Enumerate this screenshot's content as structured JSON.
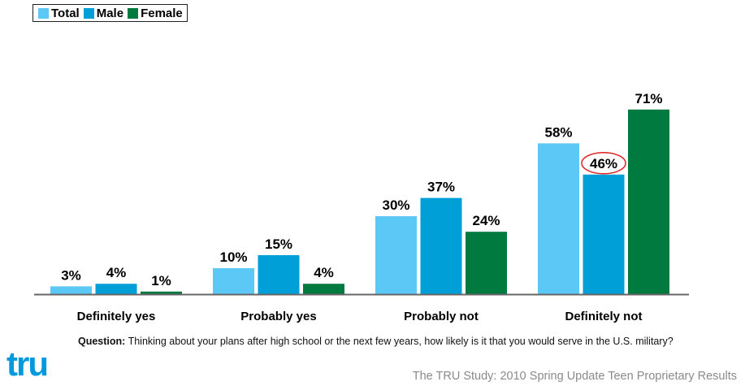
{
  "legend": {
    "items": [
      {
        "label": "Total",
        "color": "#5bc8f5"
      },
      {
        "label": "Male",
        "color": "#009fd8"
      },
      {
        "label": "Female",
        "color": "#007a3e"
      }
    ]
  },
  "chart_data": {
    "type": "bar",
    "categories": [
      "Definitely yes",
      "Probably yes",
      "Probably not",
      "Definitely not"
    ],
    "series": [
      {
        "name": "Total",
        "values": [
          3,
          10,
          30,
          58
        ],
        "color": "#5bc8f5"
      },
      {
        "name": "Male",
        "values": [
          4,
          15,
          37,
          46
        ],
        "color": "#009fd8"
      },
      {
        "name": "Female",
        "values": [
          1,
          4,
          24,
          71
        ],
        "color": "#007a3e"
      }
    ],
    "value_suffix": "%",
    "highlighted": {
      "series": "Male",
      "category": "Definitely not",
      "style": "red circle"
    },
    "legend_position": "top-left",
    "grid": false,
    "ylim": [
      0,
      80
    ]
  },
  "question": {
    "prefix": "Question:",
    "text": " Thinking about your plans after high school or the next few years, how likely is it that you would serve in the U.S. military?"
  },
  "logo": {
    "text": "tru"
  },
  "footer": {
    "text": "The TRU Study: 2010 Spring Update Teen Proprietary Results"
  }
}
